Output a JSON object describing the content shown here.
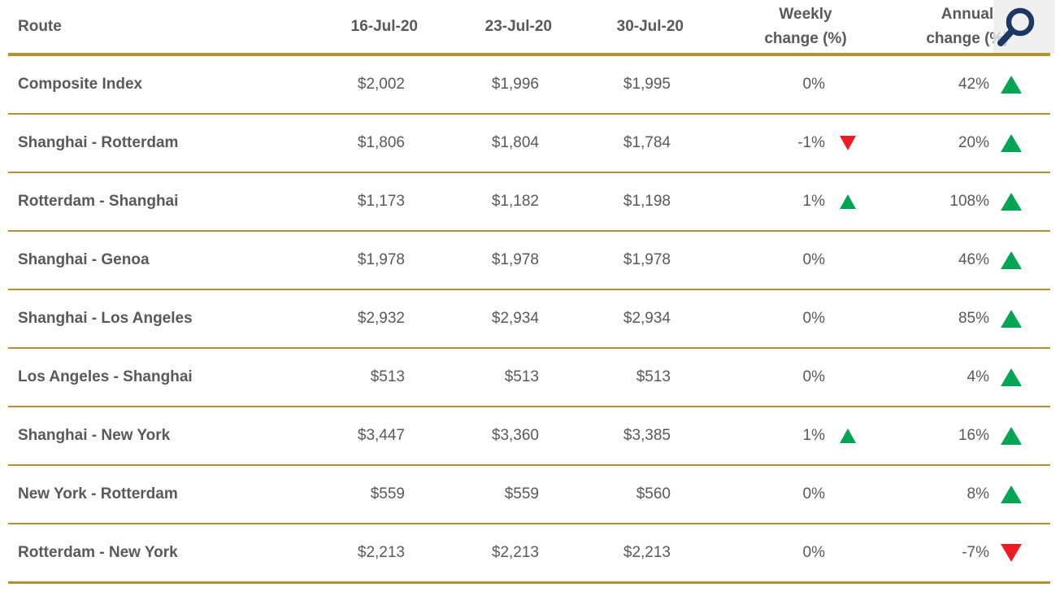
{
  "chart_data": {
    "type": "table",
    "columns": [
      "Route",
      "16-Jul-20",
      "23-Jul-20",
      "30-Jul-20",
      "Weekly change (%)",
      "Annual change (%)"
    ],
    "rows": [
      {
        "route": "Composite Index",
        "rates": [
          "$2,002",
          "$1,996",
          "$1,995"
        ],
        "weekly": "0%",
        "weekly_dir": "none",
        "annual": "42%",
        "annual_dir": "up"
      },
      {
        "route": "Shanghai - Rotterdam",
        "rates": [
          "$1,806",
          "$1,804",
          "$1,784"
        ],
        "weekly": "-1%",
        "weekly_dir": "down",
        "annual": "20%",
        "annual_dir": "up"
      },
      {
        "route": "Rotterdam - Shanghai",
        "rates": [
          "$1,173",
          "$1,182",
          "$1,198"
        ],
        "weekly": "1%",
        "weekly_dir": "up",
        "annual": "108%",
        "annual_dir": "up"
      },
      {
        "route": "Shanghai - Genoa",
        "rates": [
          "$1,978",
          "$1,978",
          "$1,978"
        ],
        "weekly": "0%",
        "weekly_dir": "none",
        "annual": "46%",
        "annual_dir": "up"
      },
      {
        "route": "Shanghai - Los Angeles",
        "rates": [
          "$2,932",
          "$2,934",
          "$2,934"
        ],
        "weekly": "0%",
        "weekly_dir": "none",
        "annual": "85%",
        "annual_dir": "up"
      },
      {
        "route": "Los Angeles - Shanghai",
        "rates": [
          "$513",
          "$513",
          "$513"
        ],
        "weekly": "0%",
        "weekly_dir": "none",
        "annual": "4%",
        "annual_dir": "up"
      },
      {
        "route": "Shanghai - New York",
        "rates": [
          "$3,447",
          "$3,360",
          "$3,385"
        ],
        "weekly": "1%",
        "weekly_dir": "up",
        "annual": "16%",
        "annual_dir": "up"
      },
      {
        "route": "New York - Rotterdam",
        "rates": [
          "$559",
          "$559",
          "$560"
        ],
        "weekly": "0%",
        "weekly_dir": "none",
        "annual": "8%",
        "annual_dir": "up"
      },
      {
        "route": "Rotterdam - New York",
        "rates": [
          "$2,213",
          "$2,213",
          "$2,213"
        ],
        "weekly": "0%",
        "weekly_dir": "none",
        "annual": "-7%",
        "annual_dir": "down"
      }
    ],
    "layout_hints": {
      "grid": "horizontal gold rules between rows",
      "value_alignment": "right"
    }
  },
  "ui": {
    "zoom_button": {
      "icon": "magnifier-icon"
    }
  },
  "colors": {
    "rule_gold": "#B2922F",
    "up_green": "#00A651",
    "down_red": "#ED1C24",
    "text_gray": "#58595B",
    "icon_navy": "#1C3763",
    "icon_bg": "#ECECEC"
  }
}
